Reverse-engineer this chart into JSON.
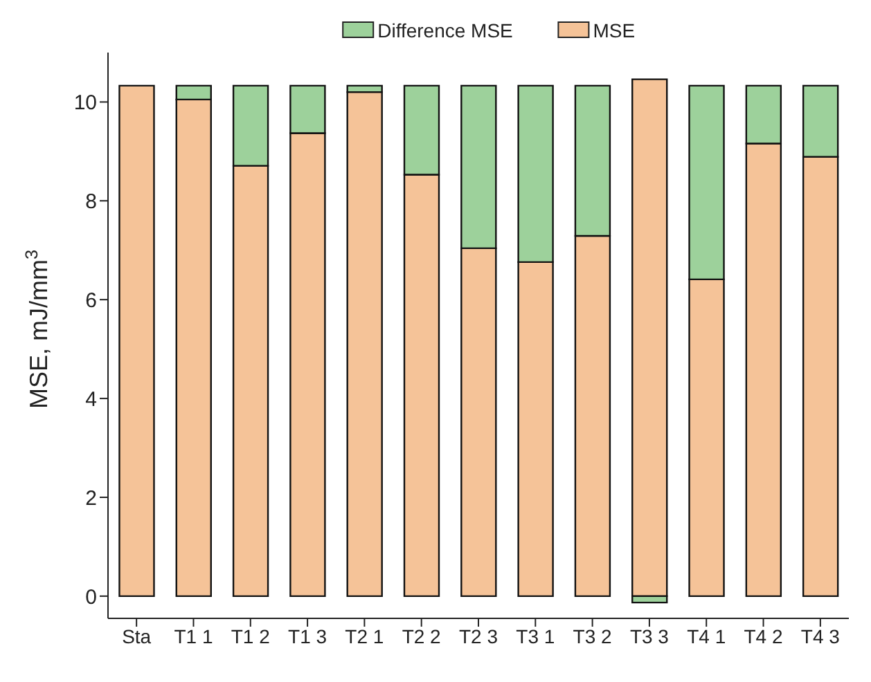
{
  "chart_data": {
    "type": "bar",
    "stacked": true,
    "ylabel": "MSE, mJ/mm$^{3}$",
    "categories": [
      "Sta",
      "T1  1",
      "T1  2",
      "T1  3",
      "T2  1",
      "T2  2",
      "T2  3",
      "T3  1",
      "T3  2",
      "T3  3",
      "T4  1",
      "T4  2",
      "T4  3"
    ],
    "series": [
      {
        "name": "MSE",
        "color": "#f5c398",
        "values": [
          10.33,
          10.05,
          8.71,
          9.37,
          10.2,
          8.53,
          7.04,
          6.76,
          7.29,
          10.46,
          6.41,
          9.16,
          8.89
        ]
      },
      {
        "name": "Difference MSE",
        "color": "#9dd19b",
        "values": [
          0,
          0.28,
          1.62,
          0.96,
          0.13,
          1.8,
          3.29,
          3.57,
          3.04,
          -0.13,
          3.92,
          1.17,
          1.44
        ]
      }
    ],
    "ylim": [
      -0.45,
      11
    ],
    "yticks": [
      0,
      2,
      4,
      6,
      8,
      10
    ],
    "grid": false,
    "legend": "top"
  }
}
